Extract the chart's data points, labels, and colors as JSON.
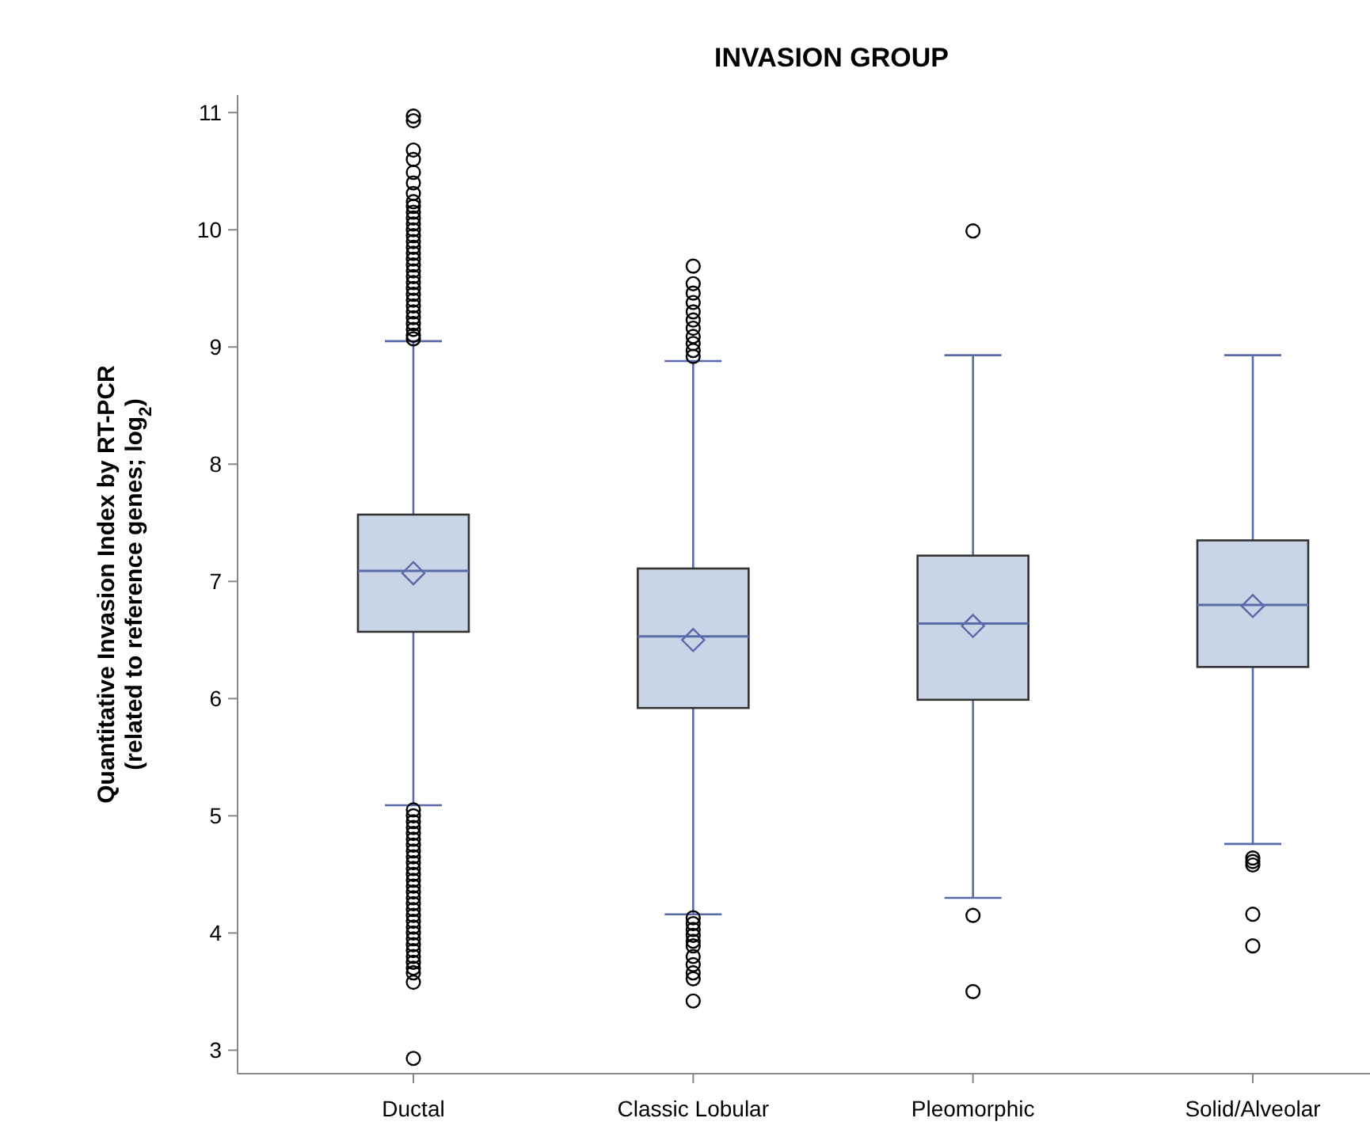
{
  "chart_data": {
    "type": "box",
    "title": "INVASION GROUP",
    "ylabel": "Quantitative Invasion Index by RT-PCR\n(related to reference genes; log$_{2}$)",
    "categories": [
      "Ductal",
      "Classic Lobular",
      "Pleomorphic",
      "Solid/Alveolar"
    ],
    "ylim": [
      2.8,
      11.15
    ],
    "yticks": [
      3,
      4,
      5,
      6,
      7,
      8,
      9,
      10,
      11
    ],
    "grid": false,
    "color": "#c9d5e6",
    "boxes": [
      {
        "low": 5.09,
        "q1": 6.57,
        "median": 7.09,
        "q3": 7.57,
        "high": 9.05,
        "mean": 7.07,
        "outliers": [
          10.97,
          10.93,
          10.68,
          10.6,
          10.49,
          10.4,
          10.31,
          10.24,
          10.2,
          10.15,
          10.1,
          10.05,
          10.0,
          9.95,
          9.9,
          9.85,
          9.8,
          9.75,
          9.7,
          9.65,
          9.6,
          9.55,
          9.5,
          9.45,
          9.4,
          9.35,
          9.3,
          9.25,
          9.2,
          9.15,
          9.1,
          9.07,
          5.05,
          5.0,
          4.95,
          4.9,
          4.85,
          4.8,
          4.75,
          4.7,
          4.65,
          4.6,
          4.55,
          4.5,
          4.45,
          4.4,
          4.35,
          4.3,
          4.25,
          4.2,
          4.15,
          4.1,
          4.05,
          4.0,
          3.95,
          3.9,
          3.85,
          3.8,
          3.75,
          3.7,
          3.66,
          3.58,
          2.93
        ]
      },
      {
        "low": 4.16,
        "q1": 5.92,
        "median": 6.53,
        "q3": 7.11,
        "high": 8.88,
        "mean": 6.5,
        "outliers": [
          9.69,
          9.54,
          9.46,
          9.38,
          9.3,
          9.23,
          9.16,
          9.09,
          9.03,
          8.97,
          8.92,
          4.13,
          4.08,
          4.03,
          3.98,
          3.93,
          3.89,
          3.8,
          3.73,
          3.66,
          3.61,
          3.42
        ]
      },
      {
        "low": 4.3,
        "q1": 5.99,
        "median": 6.64,
        "q3": 7.22,
        "high": 8.93,
        "mean": 6.62,
        "outliers": [
          9.99,
          4.15,
          3.5
        ]
      },
      {
        "low": 4.76,
        "q1": 6.27,
        "median": 6.8,
        "q3": 7.35,
        "high": 8.93,
        "mean": 6.79,
        "outliers": [
          4.64,
          4.61,
          4.58,
          4.16,
          3.89
        ]
      }
    ]
  }
}
